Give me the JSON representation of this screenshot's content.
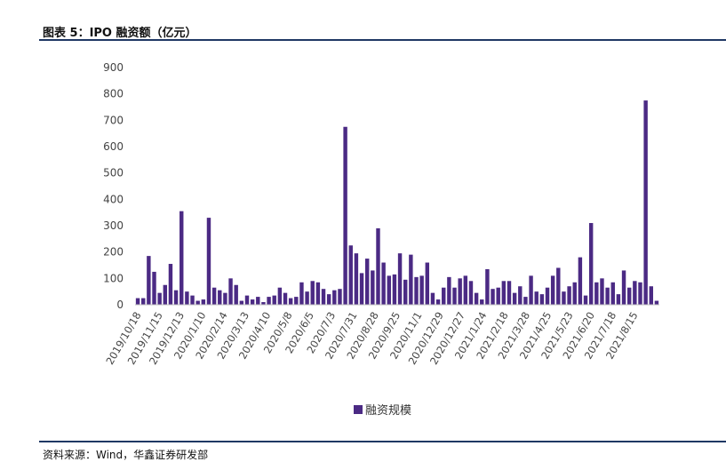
{
  "header": {
    "figure_title": "图表 5：IPO 融资额（亿元）"
  },
  "footer": {
    "source": "资料来源：Wind，华鑫证券研发部"
  },
  "colors": {
    "bar": "#4b2a84",
    "axis": "#bfbfbf",
    "rule": "#1f3864"
  },
  "chart_data": {
    "type": "bar",
    "title": "",
    "xlabel": "",
    "ylabel": "",
    "ylim": [
      0,
      900
    ],
    "y_ticks": [
      0,
      100,
      200,
      300,
      400,
      500,
      600,
      700,
      800,
      900
    ],
    "grid": false,
    "legend_position": "bottom",
    "x_tick_labels": [
      "2019/10/18",
      "2019/11/15",
      "2019/12/13",
      "2020/1/10",
      "2020/2/14",
      "2020/3/13",
      "2020/4/10",
      "2020/5/8",
      "2020/6/5",
      "2020/7/3",
      "2020/7/31",
      "2020/8/28",
      "2020/9/25",
      "2020/11/1",
      "2020/12/29",
      "2020/12/27",
      "2021/1/24",
      "2021/2/18",
      "2021/3/28",
      "2021/4/25",
      "2021/5/23",
      "2021/6/20",
      "2021/7/18",
      "2021/8/15"
    ],
    "series": [
      {
        "name": "融资规模",
        "color": "#4b2a84",
        "values": [
          25,
          25,
          185,
          125,
          45,
          75,
          155,
          55,
          355,
          50,
          35,
          15,
          20,
          330,
          65,
          55,
          45,
          100,
          75,
          15,
          35,
          20,
          30,
          10,
          30,
          35,
          65,
          45,
          25,
          30,
          85,
          50,
          90,
          85,
          60,
          40,
          55,
          60,
          675,
          225,
          195,
          120,
          175,
          130,
          290,
          160,
          110,
          115,
          195,
          95,
          190,
          105,
          110,
          160,
          45,
          20,
          65,
          105,
          65,
          100,
          110,
          90,
          45,
          20,
          135,
          60,
          65,
          90,
          90,
          45,
          70,
          30,
          110,
          50,
          40,
          65,
          110,
          140,
          50,
          70,
          85,
          180,
          35,
          310,
          85,
          100,
          65,
          85,
          40,
          130,
          65,
          90,
          85,
          775,
          70,
          15
        ]
      }
    ]
  }
}
